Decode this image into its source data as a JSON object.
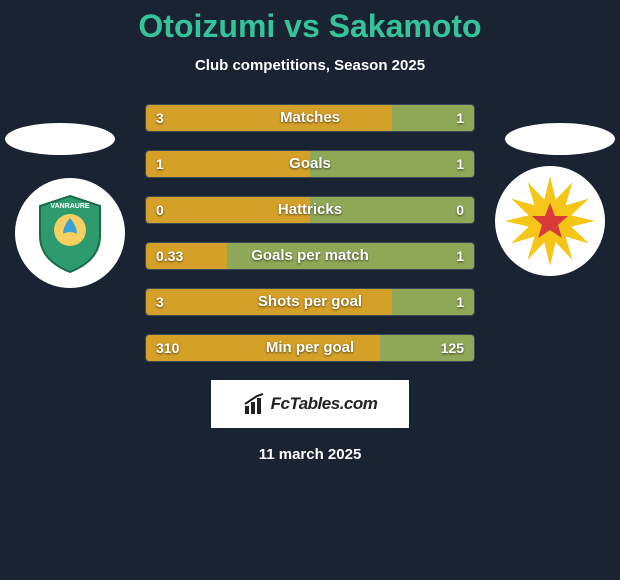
{
  "title_color": "#35c49a",
  "player1": "Otoizumi",
  "vs": " vs ",
  "player2": "Sakamoto",
  "subtitle": "Club competitions, Season 2025",
  "brand": "FcTables.com",
  "date": "11 march 2025",
  "bar_left_color": "#d4a028",
  "bar_right_color": "#8fa858",
  "bar_bg": "#2a3847",
  "stats": [
    {
      "label": "Matches",
      "left_val": "3",
      "right_val": "1",
      "left_pct": 75,
      "right_pct": 25
    },
    {
      "label": "Goals",
      "left_val": "1",
      "right_val": "1",
      "left_pct": 50,
      "right_pct": 50
    },
    {
      "label": "Hattricks",
      "left_val": "0",
      "right_val": "0",
      "left_pct": 50,
      "right_pct": 50
    },
    {
      "label": "Goals per match",
      "left_val": "0.33",
      "right_val": "1",
      "left_pct": 24.8,
      "right_pct": 75.2
    },
    {
      "label": "Shots per goal",
      "left_val": "3",
      "right_val": "1",
      "left_pct": 75,
      "right_pct": 25
    },
    {
      "label": "Min per goal",
      "left_val": "310",
      "right_val": "125",
      "left_pct": 71.3,
      "right_pct": 28.7
    }
  ],
  "team_left": {
    "bg": "#ffffff",
    "shield": "#2e9b6f",
    "accent": "#1a6b4a",
    "text": "VANRAURE"
  },
  "team_right": {
    "bg": "#ffffff",
    "rays": "#f5c518",
    "center": "#d93a3a"
  }
}
